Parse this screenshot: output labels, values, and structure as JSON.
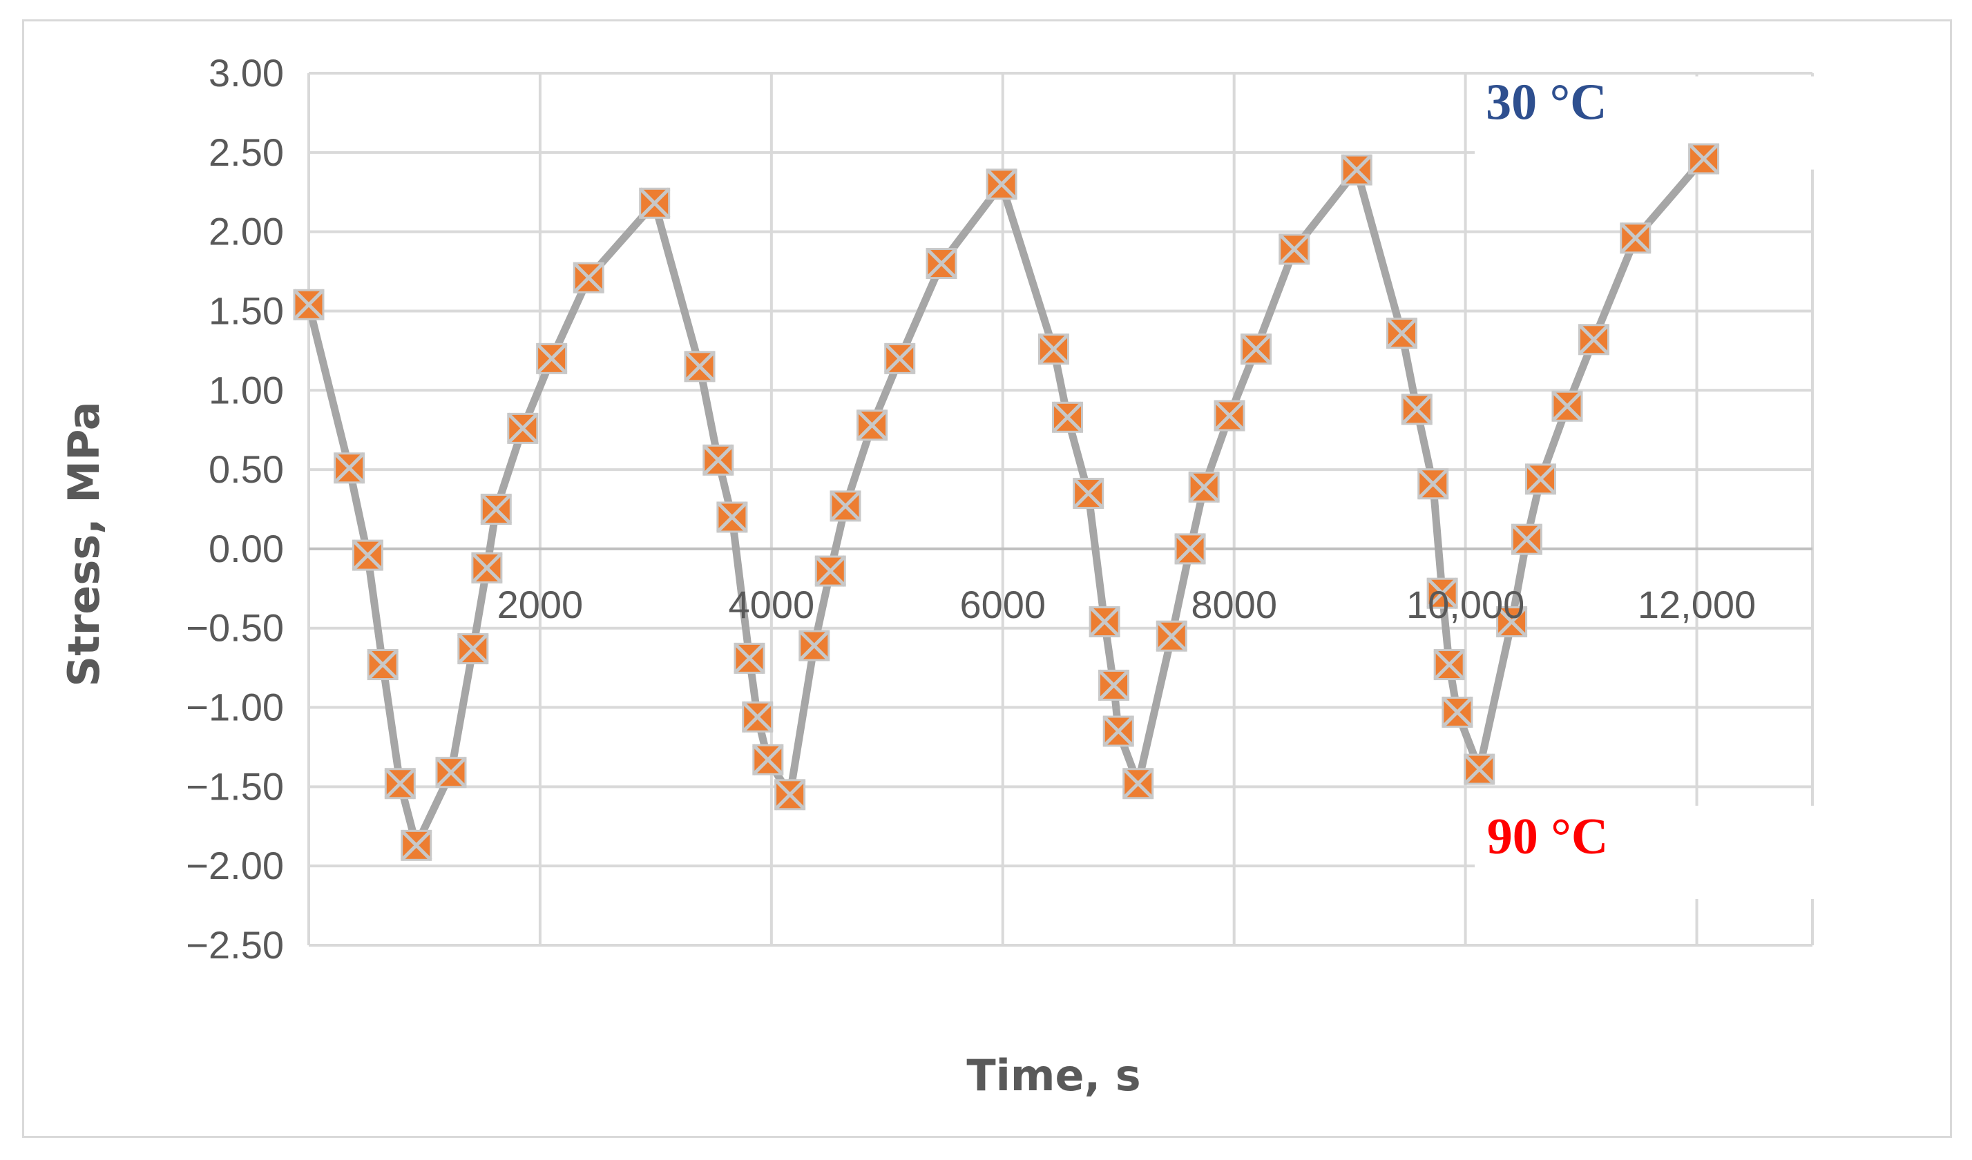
{
  "chart_data": {
    "type": "line",
    "title": "",
    "xlabel": "Time, s",
    "ylabel": "Stress, MPa",
    "xlim": [
      0,
      13000
    ],
    "ylim": [
      -2.5,
      3.0
    ],
    "grid": true,
    "legend": "none",
    "y_ticks": [
      3.0,
      2.5,
      2.0,
      1.5,
      1.0,
      0.5,
      0.0,
      -0.5,
      -1.0,
      -1.5,
      -2.0,
      -2.5
    ],
    "y_tick_labels": [
      "3.00",
      "2.50",
      "2.00",
      "1.50",
      "1.00",
      "0.50",
      "0.00",
      "−0.50",
      "−1.00",
      "−1.50",
      "−2.00",
      "−2.50"
    ],
    "x_ticks": [
      2000,
      4000,
      6000,
      8000,
      10000,
      12000
    ],
    "x_tick_labels": [
      "2000",
      "4000",
      "6000",
      "8000",
      "10,000",
      "12,000"
    ],
    "x_gridlines": [
      2000,
      4000,
      6000,
      8000,
      10000,
      12000,
      13000
    ],
    "series": [
      {
        "marker": "square-x",
        "line_color": "#a6a6a6",
        "marker_fill": "#ed7d31",
        "marker_cross": "#c8c8c8",
        "points": [
          [
            0,
            1.54
          ],
          [
            350,
            0.51
          ],
          [
            510,
            -0.04
          ],
          [
            640,
            -0.73
          ],
          [
            790,
            -1.48
          ],
          [
            930,
            -1.87
          ],
          [
            1230,
            -1.41
          ],
          [
            1420,
            -0.63
          ],
          [
            1540,
            -0.12
          ],
          [
            1620,
            0.25
          ],
          [
            1850,
            0.76
          ],
          [
            2100,
            1.2
          ],
          [
            2420,
            1.71
          ],
          [
            2990,
            2.18
          ],
          [
            3380,
            1.15
          ],
          [
            3540,
            0.56
          ],
          [
            3660,
            0.2
          ],
          [
            3810,
            -0.69
          ],
          [
            3880,
            -1.06
          ],
          [
            3970,
            -1.33
          ],
          [
            4160,
            -1.55
          ],
          [
            4370,
            -0.61
          ],
          [
            4510,
            -0.14
          ],
          [
            4640,
            0.27
          ],
          [
            4870,
            0.78
          ],
          [
            5110,
            1.2
          ],
          [
            5470,
            1.8
          ],
          [
            5990,
            2.3
          ],
          [
            6440,
            1.26
          ],
          [
            6560,
            0.83
          ],
          [
            6740,
            0.35
          ],
          [
            6880,
            -0.46
          ],
          [
            6960,
            -0.86
          ],
          [
            7000,
            -1.15
          ],
          [
            7170,
            -1.48
          ],
          [
            7460,
            -0.55
          ],
          [
            7620,
            0.0
          ],
          [
            7740,
            0.39
          ],
          [
            7960,
            0.84
          ],
          [
            8190,
            1.26
          ],
          [
            8520,
            1.89
          ],
          [
            9060,
            2.39
          ],
          [
            9450,
            1.36
          ],
          [
            9580,
            0.88
          ],
          [
            9720,
            0.41
          ],
          [
            9800,
            -0.28
          ],
          [
            9860,
            -0.73
          ],
          [
            9930,
            -1.03
          ],
          [
            10120,
            -1.39
          ],
          [
            10400,
            -0.46
          ],
          [
            10530,
            0.06
          ],
          [
            10650,
            0.44
          ],
          [
            10880,
            0.9
          ],
          [
            11110,
            1.32
          ],
          [
            11470,
            1.96
          ],
          [
            12060,
            2.46
          ]
        ]
      }
    ],
    "annotations": [
      {
        "text": "30 °C",
        "color": "#2e4f8f"
      },
      {
        "text": "90 °C",
        "color": "#ff0000"
      }
    ]
  }
}
